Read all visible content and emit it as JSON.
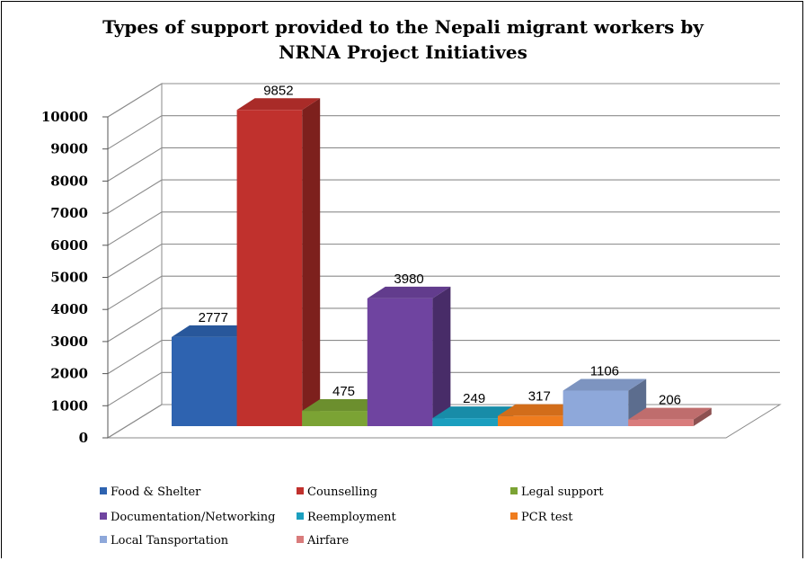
{
  "chart_data": {
    "type": "bar",
    "title_line1": "Types of support provided to the Nepali migrant workers by",
    "title_line2": "NRNA Project Initiatives",
    "categories": [
      "Food & Shelter",
      "Counselling",
      "Legal support",
      "Documentation/Networking",
      "Reemployment",
      "PCR test",
      "Local Tansportation",
      "Airfare"
    ],
    "values": [
      2777,
      9852,
      475,
      3980,
      249,
      317,
      1106,
      206
    ],
    "colors": [
      "#2e63b0",
      "#c0312d",
      "#7ba334",
      "#6f44a0",
      "#1b9fbf",
      "#ef7c1e",
      "#8ea8da",
      "#d97c7c"
    ],
    "ylim": [
      0,
      10000
    ],
    "yticks": [
      "0",
      "1000",
      "2000",
      "3000",
      "4000",
      "5000",
      "6000",
      "7000",
      "8000",
      "9000",
      "10000"
    ],
    "grid": true,
    "legend_position": "bottom",
    "three_d": true
  }
}
